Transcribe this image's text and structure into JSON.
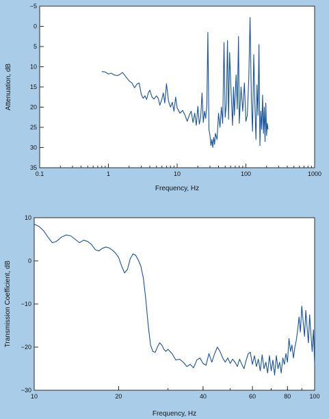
{
  "colors": {
    "background": "#a9cde9",
    "plot_bg": "#ffffff",
    "line": "#1452a0"
  },
  "chart_data": [
    {
      "type": "line",
      "title": "",
      "xlabel": "Frequency, Hz",
      "ylabel": "Attenuation, dB",
      "xscale": "log",
      "xlim": [
        0.1,
        1000
      ],
      "ylim": [
        35,
        -5
      ],
      "y_inverted": true,
      "xticks": [
        0.1,
        1,
        10,
        100,
        1000
      ],
      "xtick_labels": [
        "0.1",
        "1",
        "10",
        "100",
        "1000"
      ],
      "yticks": [
        -5,
        0,
        5,
        10,
        15,
        20,
        25,
        30,
        35
      ],
      "ytick_labels": [
        "−5",
        "0",
        "5",
        "10",
        "15",
        "20",
        "25",
        "30",
        "35"
      ],
      "grid": false,
      "series": [
        {
          "x": [
            0.8,
            0.9,
            1.0,
            1.1,
            1.2,
            1.35,
            1.5,
            1.6,
            1.8,
            2.0,
            2.2,
            2.4,
            2.6,
            2.8,
            3.0,
            3.2,
            3.4,
            3.6,
            3.8,
            4.0,
            4.3,
            4.6,
            5.0,
            5.3,
            5.6,
            6.0,
            6.3,
            6.6,
            7.0,
            7.5,
            8.0,
            8.5,
            9.0,
            9.5,
            10,
            11,
            12,
            13,
            14,
            15,
            16,
            17,
            18,
            19,
            20,
            21,
            22,
            23,
            24,
            25,
            26,
            27,
            28,
            29,
            30,
            31,
            32,
            33,
            34,
            35,
            36,
            38,
            40,
            42,
            44,
            46,
            48,
            50,
            52,
            54,
            56,
            58,
            60,
            62,
            64,
            66,
            68,
            70,
            72,
            75,
            78,
            80,
            85,
            90,
            95,
            100,
            105,
            110,
            115,
            120,
            125,
            130,
            135,
            140,
            145,
            150,
            155,
            160,
            165,
            170,
            175,
            180,
            185,
            190,
            195,
            200,
            205,
            210
          ],
          "y": [
            11.2,
            11.3,
            11.8,
            11.6,
            12.0,
            12.2,
            11.8,
            11.4,
            12.5,
            13.5,
            14.0,
            15.2,
            14.3,
            14.0,
            16.8,
            17.8,
            17.2,
            18.1,
            16.5,
            15.8,
            17.5,
            18.0,
            17.2,
            17.8,
            19.5,
            18.0,
            16.5,
            19.0,
            14.2,
            18.5,
            20.0,
            18.8,
            21.0,
            17.5,
            20.2,
            21.5,
            20.8,
            22.0,
            23.5,
            22.0,
            21.0,
            23.8,
            21.5,
            24.5,
            19.8,
            24.2,
            22.5,
            16.5,
            23.8,
            21.0,
            22.8,
            19.5,
            1.5,
            25.5,
            27.0,
            29.5,
            28.0,
            30.0,
            27.5,
            29.2,
            26.5,
            28.0,
            21.5,
            25.0,
            20.0,
            24.0,
            4.0,
            22.5,
            19.0,
            3.5,
            23.0,
            6.5,
            13.5,
            19.0,
            24.5,
            15.0,
            22.0,
            17.0,
            12.0,
            20.5,
            2.5,
            24.0,
            15.0,
            21.0,
            14.0,
            23.5,
            22.0,
            13.0,
            -2.2,
            18.0,
            26.0,
            7.0,
            19.0,
            28.0,
            14.5,
            22.0,
            4.5,
            29.5,
            21.0,
            25.5,
            17.0,
            26.5,
            20.0,
            28.5,
            19.0,
            27.0,
            24.0,
            25.5
          ]
        }
      ]
    },
    {
      "type": "line",
      "title": "",
      "xlabel": "Frequency, Hz",
      "ylabel": "Transmission Coefficient, dB",
      "xscale": "log",
      "xlim": [
        10,
        100
      ],
      "ylim": [
        -30,
        10
      ],
      "xticks": [
        10,
        20,
        40,
        60,
        80,
        100
      ],
      "xtick_labels": [
        "10",
        "20",
        "40",
        "60",
        "80",
        "100"
      ],
      "yticks": [
        -30,
        -20,
        -10,
        0,
        10
      ],
      "ytick_labels": [
        "−30",
        "−20",
        "−10",
        "0",
        "10"
      ],
      "grid": false,
      "series": [
        {
          "x": [
            10,
            10.4,
            10.8,
            11.2,
            11.6,
            12.0,
            12.5,
            13.0,
            13.5,
            14.0,
            14.5,
            15.0,
            15.5,
            16.0,
            16.5,
            17.0,
            17.5,
            18.0,
            18.5,
            19.0,
            19.5,
            20.0,
            20.5,
            21.0,
            21.5,
            22.0,
            22.5,
            23.0,
            23.5,
            24.0,
            24.5,
            25.0,
            25.5,
            26.0,
            26.5,
            27.0,
            27.5,
            28.0,
            28.5,
            29.0,
            29.5,
            30.0,
            31.0,
            32.0,
            33.0,
            34.0,
            35.0,
            36.0,
            37.0,
            38.0,
            39.0,
            40.0,
            41.0,
            42.0,
            43.0,
            44.0,
            45.0,
            46.0,
            47.0,
            48.0,
            49.0,
            50.0,
            51.0,
            52.0,
            53.0,
            54.0,
            55.0,
            56.0,
            57.0,
            58.0,
            59.0,
            60.0,
            61.0,
            62.0,
            63.0,
            64.0,
            65.0,
            66.0,
            67.0,
            68.0,
            69.0,
            70.0,
            71.0,
            72.0,
            73.0,
            74.0,
            75.0,
            76.0,
            77.0,
            78.0,
            79.0,
            80.0,
            81.0,
            82.0,
            83.0,
            84.0,
            85.0,
            86.0,
            87.0,
            88.0,
            89.0,
            90.0,
            91.0,
            92.0,
            93.0,
            94.0,
            95.0,
            96.0,
            97.0,
            98.0,
            99.0,
            100.0
          ],
          "y": [
            8.5,
            8.0,
            7.0,
            5.5,
            4.2,
            4.5,
            5.5,
            6.0,
            5.8,
            5.0,
            4.2,
            4.8,
            4.5,
            3.8,
            2.6,
            2.3,
            2.9,
            3.2,
            3.0,
            2.5,
            1.8,
            0.8,
            -1.2,
            -2.8,
            -2.0,
            0.5,
            1.6,
            1.3,
            0.2,
            -1.2,
            -4.0,
            -9.0,
            -15.0,
            -19.5,
            -21.0,
            -21.2,
            -20.0,
            -19.0,
            -19.5,
            -20.5,
            -21.0,
            -20.5,
            -21.5,
            -23.0,
            -22.8,
            -23.5,
            -24.5,
            -24.0,
            -24.8,
            -23.0,
            -22.5,
            -23.8,
            -24.2,
            -21.5,
            -23.5,
            -21.5,
            -20.0,
            -21.0,
            -22.5,
            -23.5,
            -22.5,
            -23.8,
            -22.8,
            -23.5,
            -24.5,
            -22.8,
            -24.0,
            -25.0,
            -23.0,
            -21.5,
            -21.2,
            -24.0,
            -22.0,
            -24.5,
            -22.8,
            -25.5,
            -21.8,
            -25.0,
            -23.5,
            -26.0,
            -22.0,
            -25.5,
            -23.0,
            -26.5,
            -22.0,
            -25.0,
            -23.5,
            -26.0,
            -22.5,
            -24.0,
            -21.5,
            -23.5,
            -18.0,
            -21.0,
            -19.5,
            -22.5,
            -20.0,
            -18.5,
            -16.0,
            -13.0,
            -16.5,
            -10.5,
            -14.0,
            -17.5,
            -11.5,
            -15.5,
            -19.0,
            -12.5,
            -17.0,
            -21.0,
            -16.0,
            -24.0
          ]
        }
      ]
    }
  ]
}
